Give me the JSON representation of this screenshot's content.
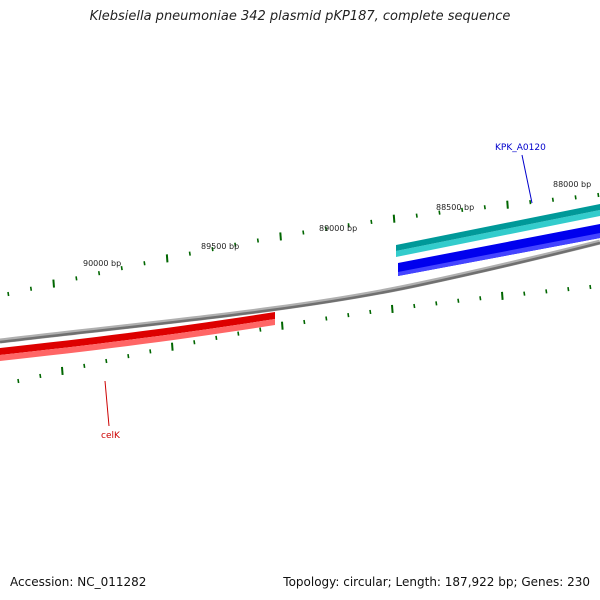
{
  "title": "Klebsiella pneumoniae 342 plasmid pKP187, complete sequence",
  "footer": {
    "accession": "Accession: NC_011282",
    "info": "Topology: circular; Length: 187,922 bp; Genes: 230"
  },
  "ticks": [
    {
      "label": "90000 bp"
    },
    {
      "label": "89500 bp"
    },
    {
      "label": "89000 bp"
    },
    {
      "label": "88500 bp"
    },
    {
      "label": "88000 bp"
    }
  ],
  "genes": [
    {
      "name": "KPK_A0120",
      "color": "#0000cc"
    },
    {
      "name": "celK",
      "color": "#cc0000"
    }
  ],
  "colors": {
    "backbone": "#888888",
    "forward_gene_dark": "#009999",
    "forward_gene_light": "#33cccc",
    "forward_cds": "#0000ee",
    "reverse_gene_dark": "#dd0000",
    "reverse_gene_light": "#ff6666",
    "ticks": "#006600"
  }
}
